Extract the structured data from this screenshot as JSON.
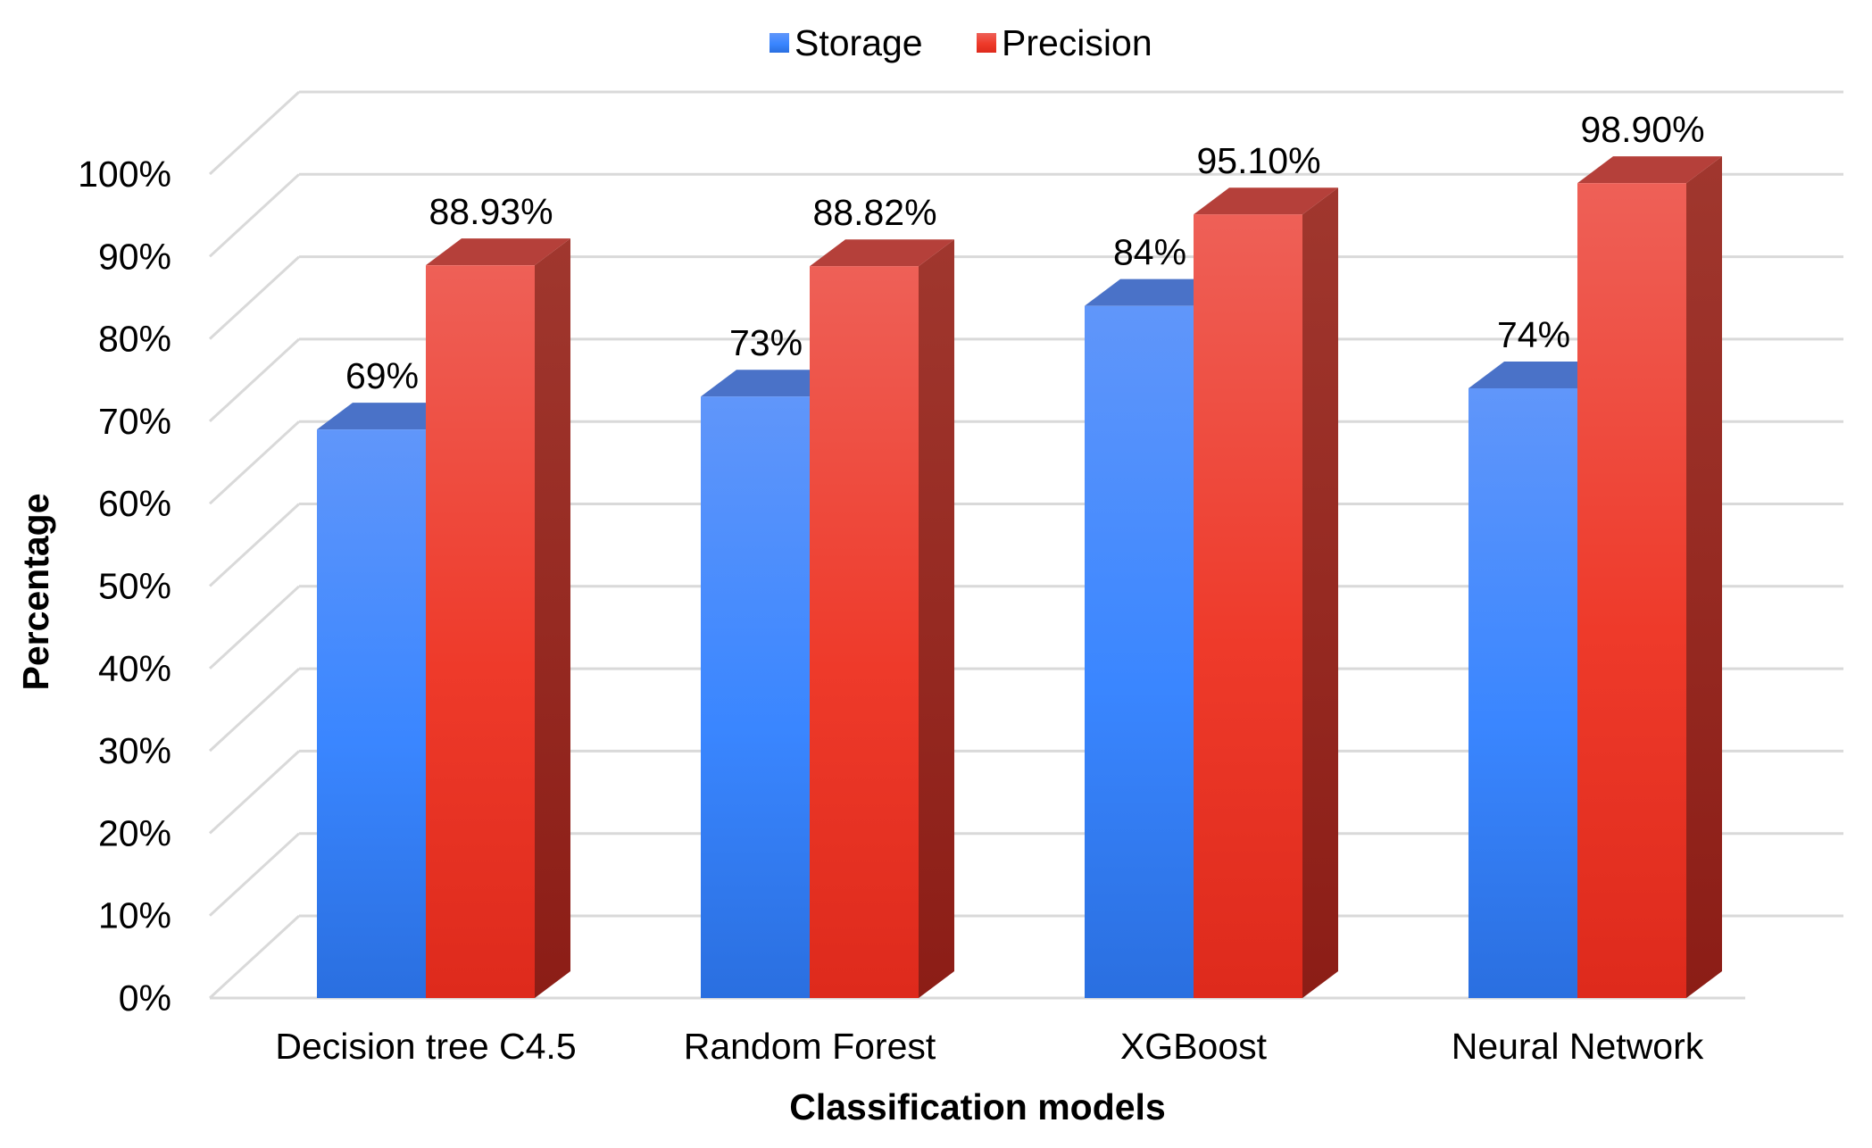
{
  "chart_data": {
    "type": "bar",
    "style": "3d-clustered-column",
    "title": "",
    "xlabel": "Classification models",
    "ylabel": "Percentage",
    "categories": [
      "Decision tree C4.5",
      "Random Forest",
      "XGBoost",
      "Neural Network"
    ],
    "series": [
      {
        "name": "Storage",
        "values": [
          69,
          73,
          84,
          74
        ],
        "labels": [
          "69%",
          "73%",
          "84%",
          "74%"
        ],
        "color": "#3B82F6"
      },
      {
        "name": "Precision",
        "values": [
          88.93,
          88.82,
          95.1,
          98.9
        ],
        "labels": [
          "88.93%",
          "88.82%",
          "95.10%",
          "98.90%"
        ],
        "color": "#EF3B2C"
      }
    ],
    "ylim": [
      0,
      100
    ],
    "yticks": [
      0,
      10,
      20,
      30,
      40,
      50,
      60,
      70,
      80,
      90,
      100
    ],
    "ytick_labels": [
      "0%",
      "10%",
      "20%",
      "30%",
      "40%",
      "50%",
      "60%",
      "70%",
      "80%",
      "90%",
      "100%"
    ],
    "grid": true,
    "legend": "top-center"
  }
}
